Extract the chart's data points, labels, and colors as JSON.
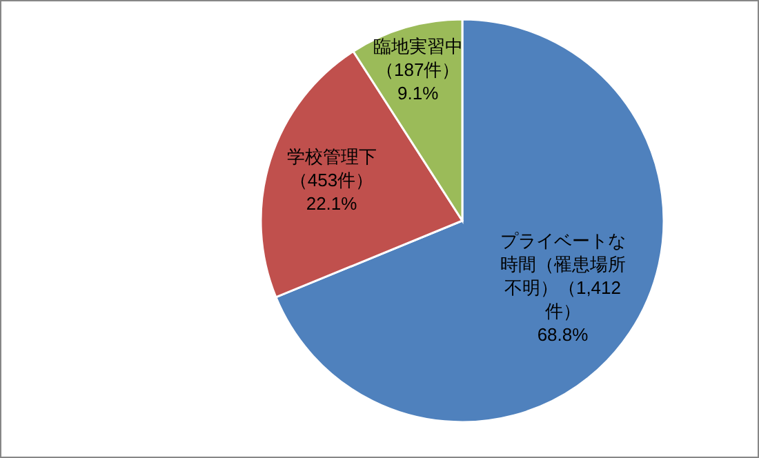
{
  "chart_data": {
    "type": "pie",
    "categories": [
      "プライベートな時間（罹患場所不明）（1,412件）",
      "学校管理下（453件）",
      "臨地実習中（187件）"
    ],
    "values": [
      68.8,
      22.1,
      9.1
    ],
    "value_labels": [
      "68.8%",
      "22.1%",
      "9.1%"
    ],
    "colors": [
      "#4f81bd",
      "#c0504d",
      "#9bbb59"
    ]
  }
}
